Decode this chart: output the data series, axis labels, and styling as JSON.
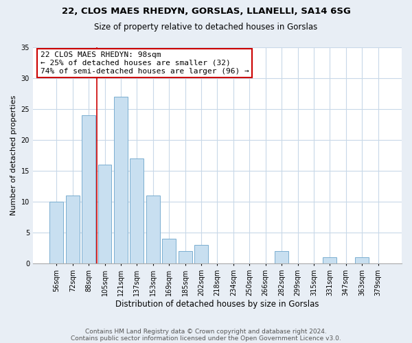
{
  "title1": "22, CLOS MAES RHEDYN, GORSLAS, LLANELLI, SA14 6SG",
  "title2": "Size of property relative to detached houses in Gorslas",
  "xlabel": "Distribution of detached houses by size in Gorslas",
  "ylabel": "Number of detached properties",
  "bar_labels": [
    "56sqm",
    "72sqm",
    "88sqm",
    "105sqm",
    "121sqm",
    "137sqm",
    "153sqm",
    "169sqm",
    "185sqm",
    "202sqm",
    "218sqm",
    "234sqm",
    "250sqm",
    "266sqm",
    "282sqm",
    "299sqm",
    "315sqm",
    "331sqm",
    "347sqm",
    "363sqm",
    "379sqm"
  ],
  "bar_values": [
    10,
    11,
    24,
    16,
    27,
    17,
    11,
    4,
    2,
    3,
    0,
    0,
    0,
    0,
    2,
    0,
    0,
    1,
    0,
    1,
    0
  ],
  "bar_color": "#c8dff0",
  "bar_edge_color": "#7aaed0",
  "vline_color": "#cc0000",
  "annotation_line1": "22 CLOS MAES RHEDYN: 98sqm",
  "annotation_line2": "← 25% of detached houses are smaller (32)",
  "annotation_line3": "74% of semi-detached houses are larger (96) →",
  "annotation_box_color": "white",
  "annotation_box_edge": "#cc0000",
  "ylim": [
    0,
    35
  ],
  "yticks": [
    0,
    5,
    10,
    15,
    20,
    25,
    30,
    35
  ],
  "footer1": "Contains HM Land Registry data © Crown copyright and database right 2024.",
  "footer2": "Contains public sector information licensed under the Open Government Licence v3.0.",
  "bg_color": "#e8eef5",
  "plot_bg_color": "#ffffff",
  "grid_color": "#c8d8e8",
  "title1_fontsize": 9.5,
  "title2_fontsize": 8.5,
  "ylabel_fontsize": 8,
  "xlabel_fontsize": 8.5,
  "tick_fontsize": 7,
  "annotation_fontsize": 8,
  "footer_fontsize": 6.5
}
